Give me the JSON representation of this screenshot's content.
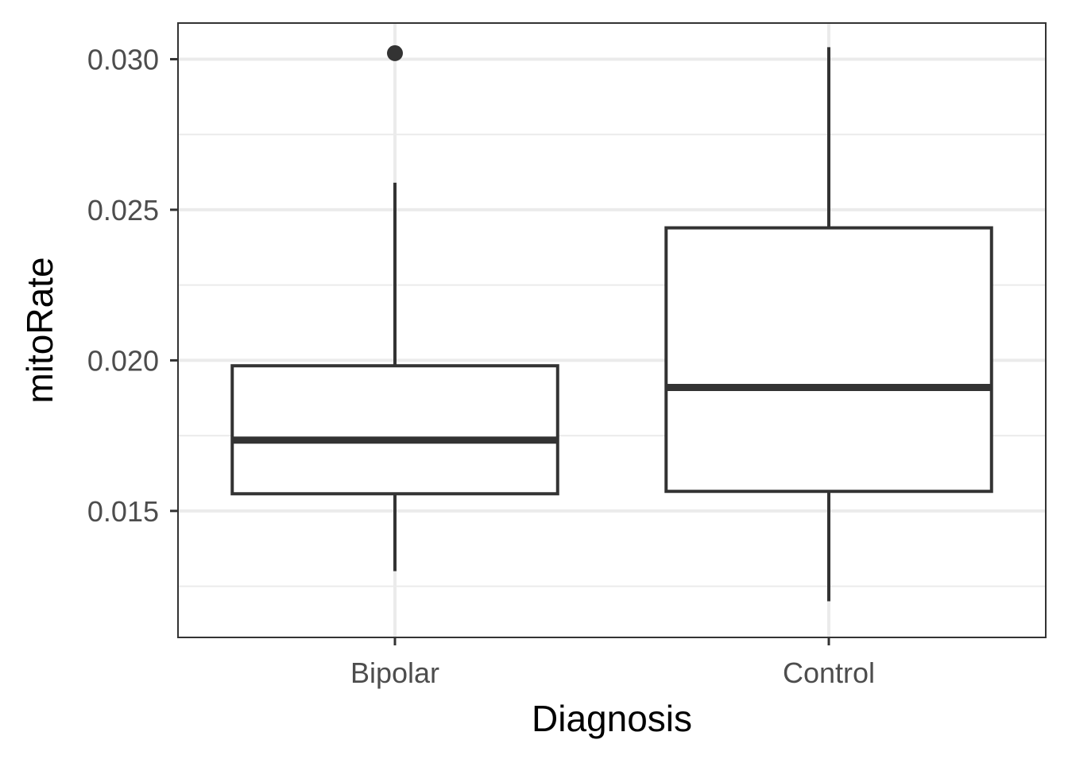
{
  "chart_data": {
    "type": "boxplot",
    "title": "",
    "xlabel": "Diagnosis",
    "ylabel": "mitoRate",
    "categories": [
      "Bipolar",
      "Control"
    ],
    "ylim": [
      0.0108,
      0.0312
    ],
    "y_ticks": [
      0.015,
      0.02,
      0.025,
      0.03
    ],
    "y_tick_labels": [
      "0.015",
      "0.020",
      "0.025",
      "0.030"
    ],
    "grid": true,
    "legend": "none",
    "boxes": [
      {
        "category": "Bipolar",
        "whisker_low": 0.013,
        "q1": 0.01557,
        "median": 0.01735,
        "q3": 0.01982,
        "whisker_high": 0.0259,
        "outliers": [
          0.0302
        ]
      },
      {
        "category": "Control",
        "whisker_low": 0.012,
        "q1": 0.01565,
        "median": 0.0191,
        "q3": 0.0244,
        "whisker_high": 0.0304,
        "outliers": []
      }
    ],
    "colors": {
      "box_line": "#333333",
      "box_fill": "#ffffff",
      "grid_major": "#ebebeb",
      "grid_minor": "#ebebeb",
      "panel_border": "#333333",
      "tick_text": "#4d4d4d"
    }
  }
}
